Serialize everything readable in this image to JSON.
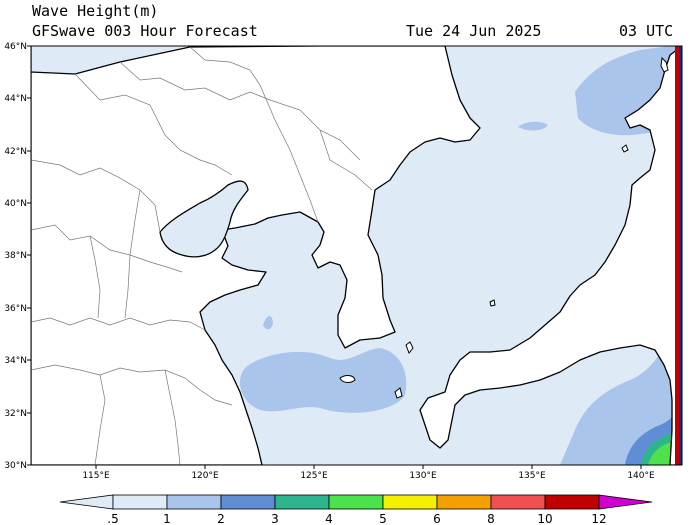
{
  "header": {
    "title": "Wave Height(m)",
    "subtitle": "GFSwave 003 Hour Forecast",
    "date": "Tue 24 Jun 2025",
    "time": "03 UTC"
  },
  "map": {
    "lon_range": [
      112,
      142
    ],
    "lat_range": [
      30,
      46
    ],
    "lat_labels": [
      "30°N",
      "32°N",
      "34°N",
      "36°N",
      "38°N",
      "40°N",
      "42°N",
      "44°N",
      "46°N"
    ],
    "lon_labels": [
      "115°E",
      "120°E",
      "125°E",
      "130°E",
      "135°E",
      "140°E"
    ],
    "colors": {
      "land": "#ffffff",
      "coast": "#000000",
      "border": "#777777",
      "frame": "#000000"
    }
  },
  "colorbar": {
    "levels": [
      ".5",
      "1",
      "2",
      "3",
      "4",
      "5",
      "6",
      "8",
      "10",
      "12"
    ],
    "colors": [
      "#dfeaf7",
      "#a9c5ec",
      "#5f8dd6",
      "#2fb58d",
      "#4be24b",
      "#f4f000",
      "#f4a000",
      "#f05050",
      "#c00000",
      "#d000d0"
    ]
  }
}
